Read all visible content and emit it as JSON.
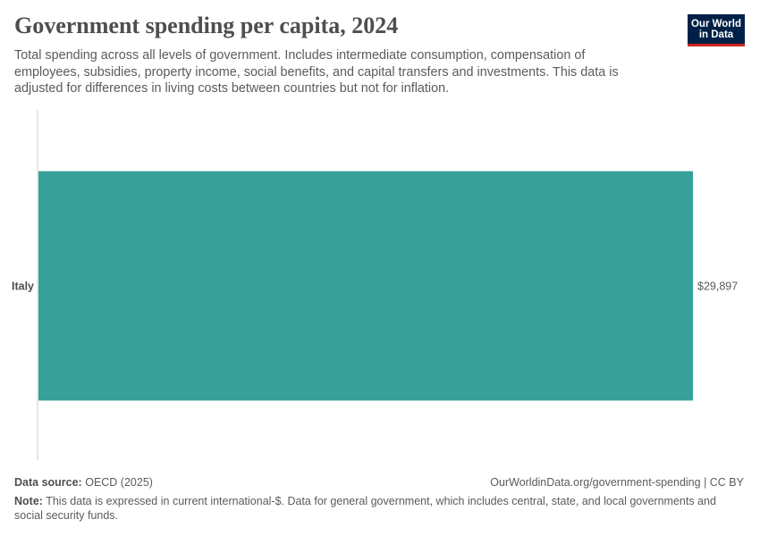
{
  "header": {
    "title": "Government spending per capita, 2024",
    "subtitle": "Total spending across all levels of government. Includes intermediate consumption, compensation of employees, subsidies, property income, social benefits, and capital transfers and investments. This data is adjusted for differences in living costs between countries but not for inflation.",
    "logo_line1": "Our World",
    "logo_line2": "in Data"
  },
  "colors": {
    "bar": "#36a099",
    "axis": "#cccccc",
    "label": "#4e4e4e",
    "value_label": "#5b5b5b",
    "logo_bg": "#002147",
    "logo_accent": "#ce261e"
  },
  "chart_data": {
    "type": "bar",
    "orientation": "horizontal",
    "categories": [
      "Italy"
    ],
    "values": [
      29897
    ],
    "value_labels": [
      "$29,897"
    ],
    "title": "Government spending per capita, 2024",
    "xlabel": "",
    "ylabel": "",
    "xlim": [
      0,
      29897
    ],
    "grid": false,
    "legend": "none"
  },
  "footer": {
    "source_label": "Data source:",
    "source_text": "OECD (2025)",
    "url_text": "OurWorldinData.org/government-spending | CC BY",
    "note_label": "Note:",
    "note_text": "This data is expressed in current international-$. Data for general government, which includes central, state, and local governments and social security funds."
  }
}
